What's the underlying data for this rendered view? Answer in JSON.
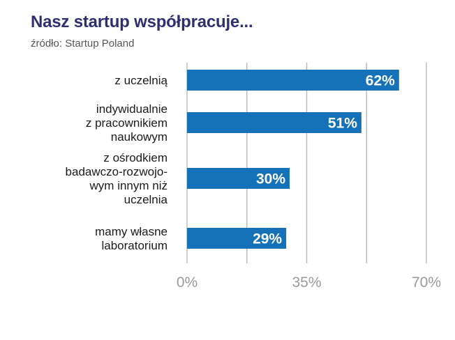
{
  "header": {
    "title": "Nasz startup współpracuje...",
    "subtitle": "źródło: Startup Poland"
  },
  "colors": {
    "bar": "#1572b8",
    "grid": "#bdbdbd",
    "title": "#2e2f72"
  },
  "chart_data": {
    "type": "bar",
    "orientation": "horizontal",
    "title": "Nasz startup współpracuje...",
    "subtitle": "źródło: Startup Poland",
    "categories": [
      "z uczelnią",
      "indywidualnie z pracownikiem naukowym",
      "z ośrodkiem badawczo-rozwojowym innym niż uczelnia",
      "mamy własne laboratorium"
    ],
    "category_lines": [
      [
        "z uczelnią"
      ],
      [
        "indywidualnie",
        "z pracownikiem",
        "naukowym"
      ],
      [
        "z ośrodkiem",
        "badawczo-rozwojo-",
        "wym innym niż",
        "uczelnia"
      ],
      [
        "mamy własne",
        "laboratorium"
      ]
    ],
    "values": [
      62,
      51,
      30,
      29
    ],
    "value_labels": [
      "62%",
      "51%",
      "30%",
      "29%"
    ],
    "xlim": [
      0,
      70
    ],
    "xticks": [
      0,
      35,
      70
    ],
    "xtick_labels": [
      "0%",
      "35%",
      "70%"
    ],
    "gridlines": [
      0,
      17.5,
      35,
      52.5,
      70
    ],
    "grid": true,
    "legend": "none"
  }
}
